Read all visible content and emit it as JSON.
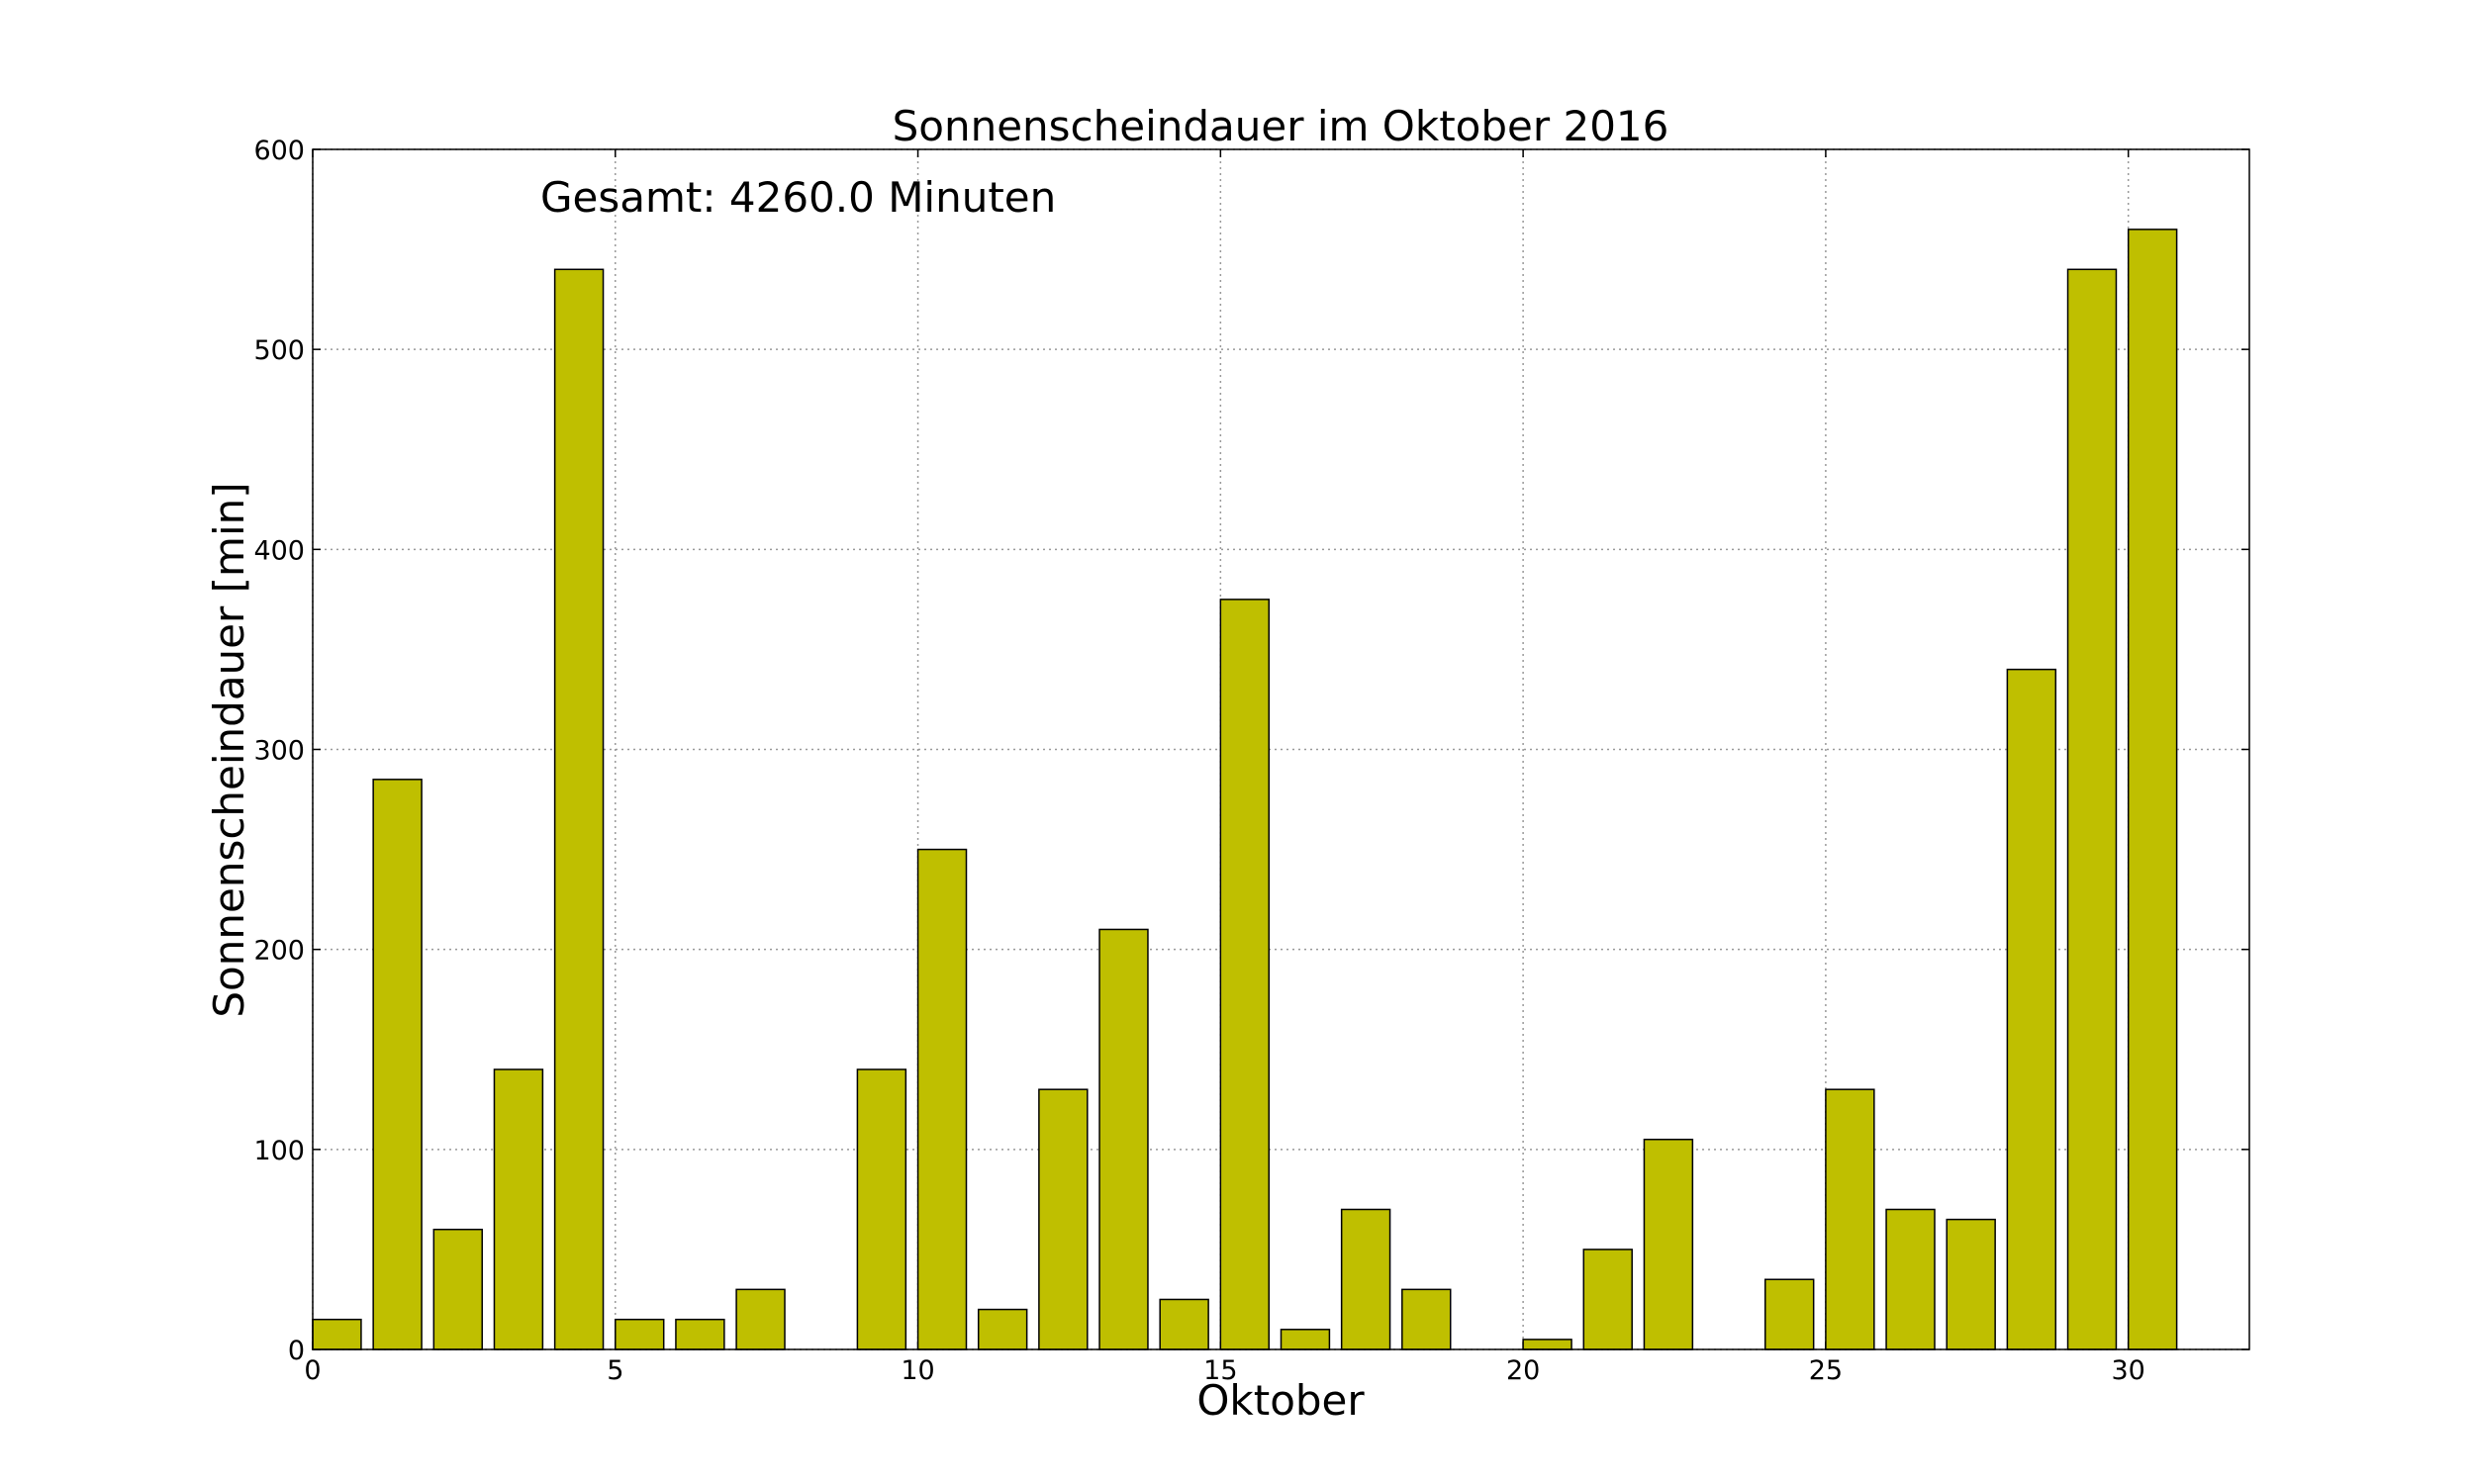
{
  "chart_data": {
    "type": "bar",
    "title": "Sonnenscheindauer im Oktober 2016",
    "x_label": "Oktober",
    "y_label": "Sonnenscheindauer [min]",
    "annotation": "Gesamt: 4260.0 Minuten",
    "x": [
      0,
      1,
      2,
      3,
      4,
      5,
      6,
      7,
      8,
      9,
      10,
      11,
      12,
      13,
      14,
      15,
      16,
      17,
      18,
      19,
      20,
      21,
      22,
      23,
      24,
      25,
      26,
      27,
      28,
      29,
      30
    ],
    "values": [
      15,
      285,
      60,
      140,
      540,
      15,
      15,
      30,
      0,
      140,
      250,
      20,
      130,
      210,
      25,
      375,
      10,
      70,
      30,
      0,
      5,
      50,
      105,
      0,
      35,
      130,
      70,
      65,
      340,
      540,
      560
    ],
    "color": "#bfbf00",
    "xlim": [
      0,
      32
    ],
    "xticks": [
      0,
      5,
      10,
      15,
      20,
      25,
      30
    ],
    "ylim": [
      0,
      600
    ],
    "yticks": [
      0,
      100,
      200,
      300,
      400,
      500,
      600
    ],
    "grid": true
  }
}
